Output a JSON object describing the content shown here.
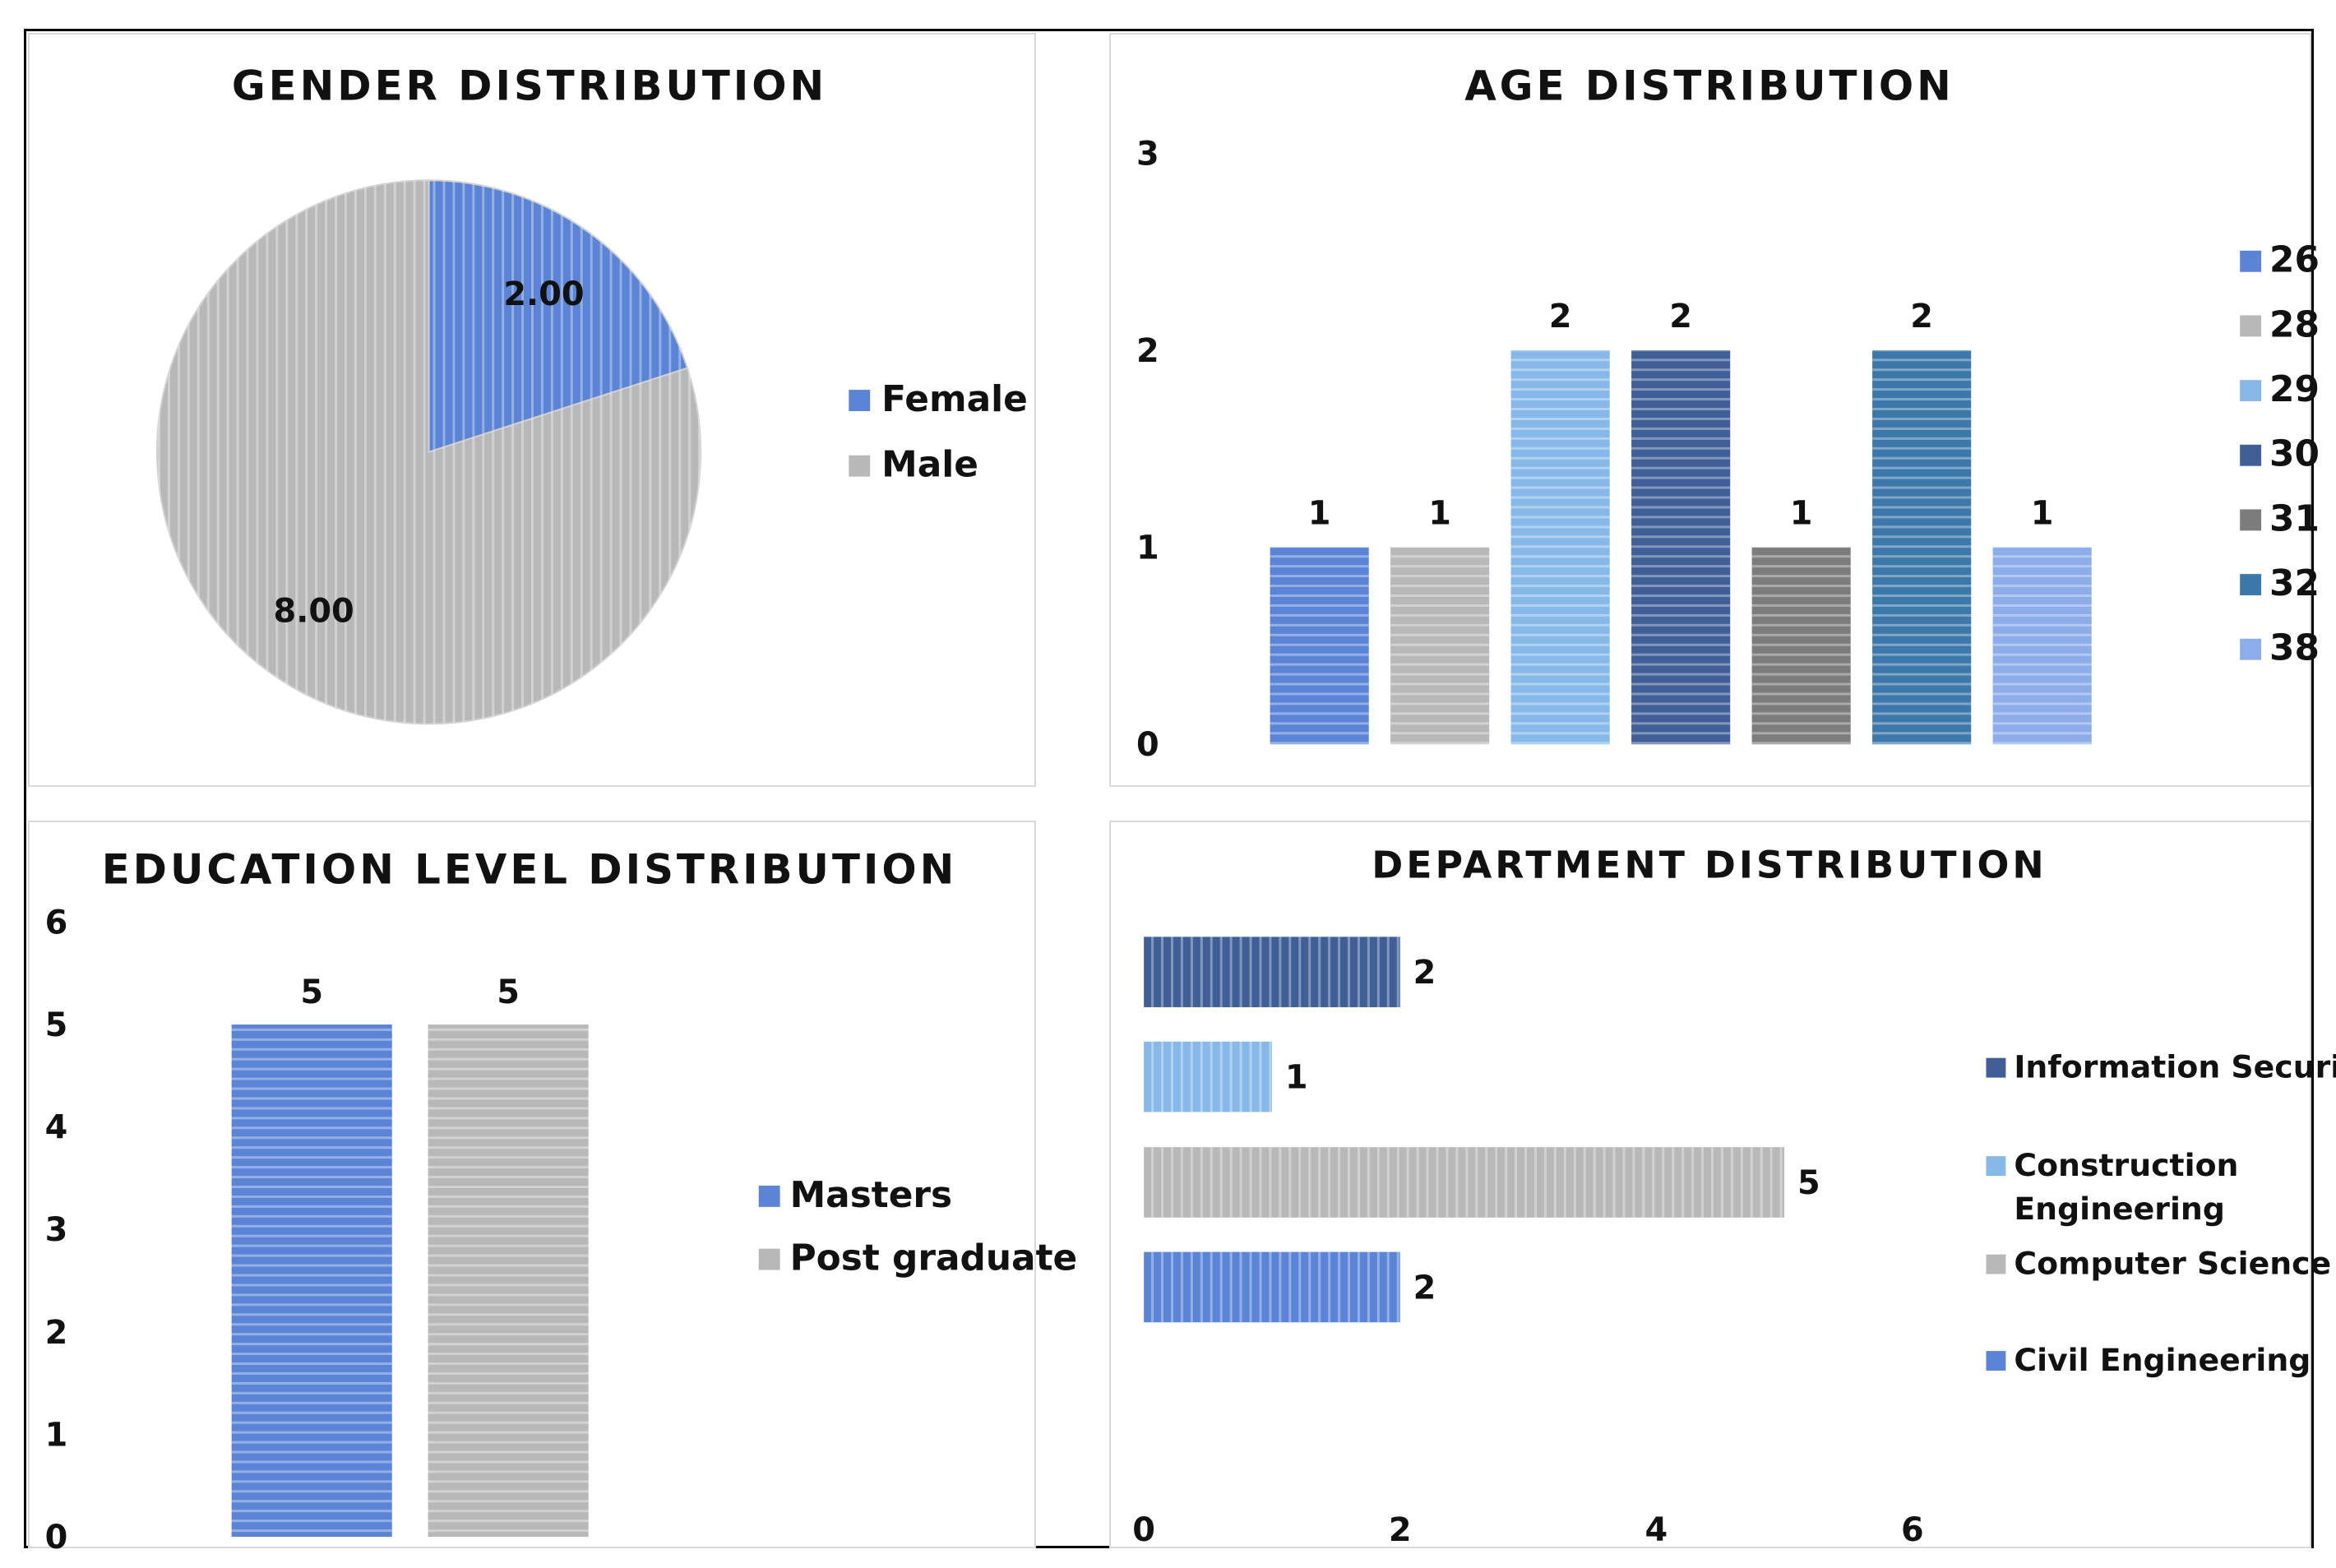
{
  "palette": {
    "blue": "#5b84d6",
    "gray": "#b8b8b8",
    "lightblue": "#86b9e8",
    "darkblue": "#3f5f96",
    "darkgray": "#7c7c7c",
    "steelblue": "#3d78aa",
    "periwinkle": "#8cacea"
  },
  "chart_data": [
    {
      "type": "pie",
      "title": "GENDER DISTRIBUTION",
      "labels": [
        "Female",
        "Male"
      ],
      "values": [
        2,
        8
      ],
      "value_labels": [
        "2.00",
        "8.00"
      ],
      "colors": [
        "#5b84d6",
        "#b8b8b8"
      ],
      "legend": "right"
    },
    {
      "type": "bar",
      "title": "AGE DISTRIBUTION",
      "categories": [
        "26",
        "28",
        "29",
        "30",
        "31",
        "32",
        "38"
      ],
      "values": [
        1,
        1,
        2,
        2,
        1,
        2,
        1
      ],
      "colors": [
        "#5b84d6",
        "#b8b8b8",
        "#86b9e8",
        "#3f5f96",
        "#7c7c7c",
        "#3d78aa",
        "#8cacea"
      ],
      "ylim": [
        0,
        3
      ],
      "yticks": [
        "0",
        "1",
        "2",
        "3"
      ],
      "legend": "right",
      "grid": false
    },
    {
      "type": "bar",
      "title": "EDUCATION LEVEL DISTRIBUTION",
      "categories": [
        "Masters",
        "Post graduate"
      ],
      "values": [
        5,
        5
      ],
      "colors": [
        "#5b84d6",
        "#b8b8b8"
      ],
      "ylim": [
        0,
        6
      ],
      "yticks": [
        "0",
        "1",
        "2",
        "3",
        "4",
        "5",
        "6"
      ],
      "legend": "right",
      "grid": false
    },
    {
      "type": "bar",
      "orientation": "horizontal",
      "title": "DEPARTMENT DISTRIBUTION",
      "categories": [
        "Information Security",
        "Construction Engineering",
        "Computer Science",
        "Civil Engineering"
      ],
      "values": [
        2,
        1,
        5,
        2
      ],
      "colors": [
        "#3f5f96",
        "#86b9e8",
        "#b8b8b8",
        "#5b84d6"
      ],
      "xlim": [
        0,
        6
      ],
      "xticks": [
        "0",
        "2",
        "4",
        "6"
      ],
      "legend": "right",
      "grid": false
    }
  ]
}
